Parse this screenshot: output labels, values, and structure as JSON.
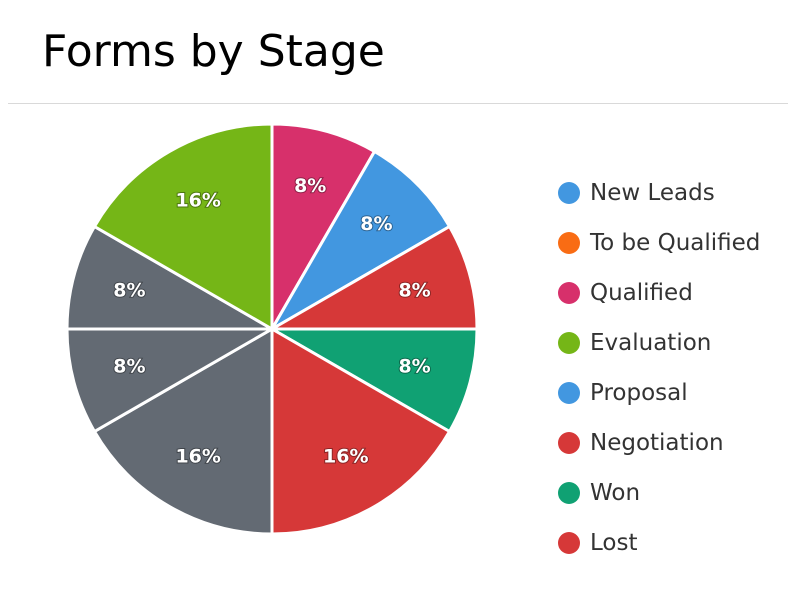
{
  "page_title": "Forms by Stage",
  "chart_data": {
    "type": "pie",
    "title": "Forms by Stage",
    "legend_position": "right",
    "legend": [
      {
        "name": "New Leads",
        "color": "#4297e0"
      },
      {
        "name": "To be Qualified",
        "color": "#f96c14"
      },
      {
        "name": "Qualified",
        "color": "#d7306b"
      },
      {
        "name": "Evaluation",
        "color": "#75b617"
      },
      {
        "name": "Proposal",
        "color": "#4297e0"
      },
      {
        "name": "Negotiation",
        "color": "#d63838"
      },
      {
        "name": "Won",
        "color": "#10a173"
      },
      {
        "name": "Lost",
        "color": "#d63838"
      }
    ],
    "slices": [
      {
        "label": "8%",
        "value": 8,
        "color": "#d7306b"
      },
      {
        "label": "8%",
        "value": 8,
        "color": "#4297e0"
      },
      {
        "label": "8%",
        "value": 8,
        "color": "#d63838"
      },
      {
        "label": "8%",
        "value": 8,
        "color": "#10a173"
      },
      {
        "label": "16%",
        "value": 16,
        "color": "#d63838"
      },
      {
        "label": "16%",
        "value": 16,
        "color": "#636a73"
      },
      {
        "label": "8%",
        "value": 8,
        "color": "#636a73"
      },
      {
        "label": "8%",
        "value": 8,
        "color": "#636a73"
      },
      {
        "label": "16%",
        "value": 16,
        "color": "#75b617"
      }
    ]
  }
}
